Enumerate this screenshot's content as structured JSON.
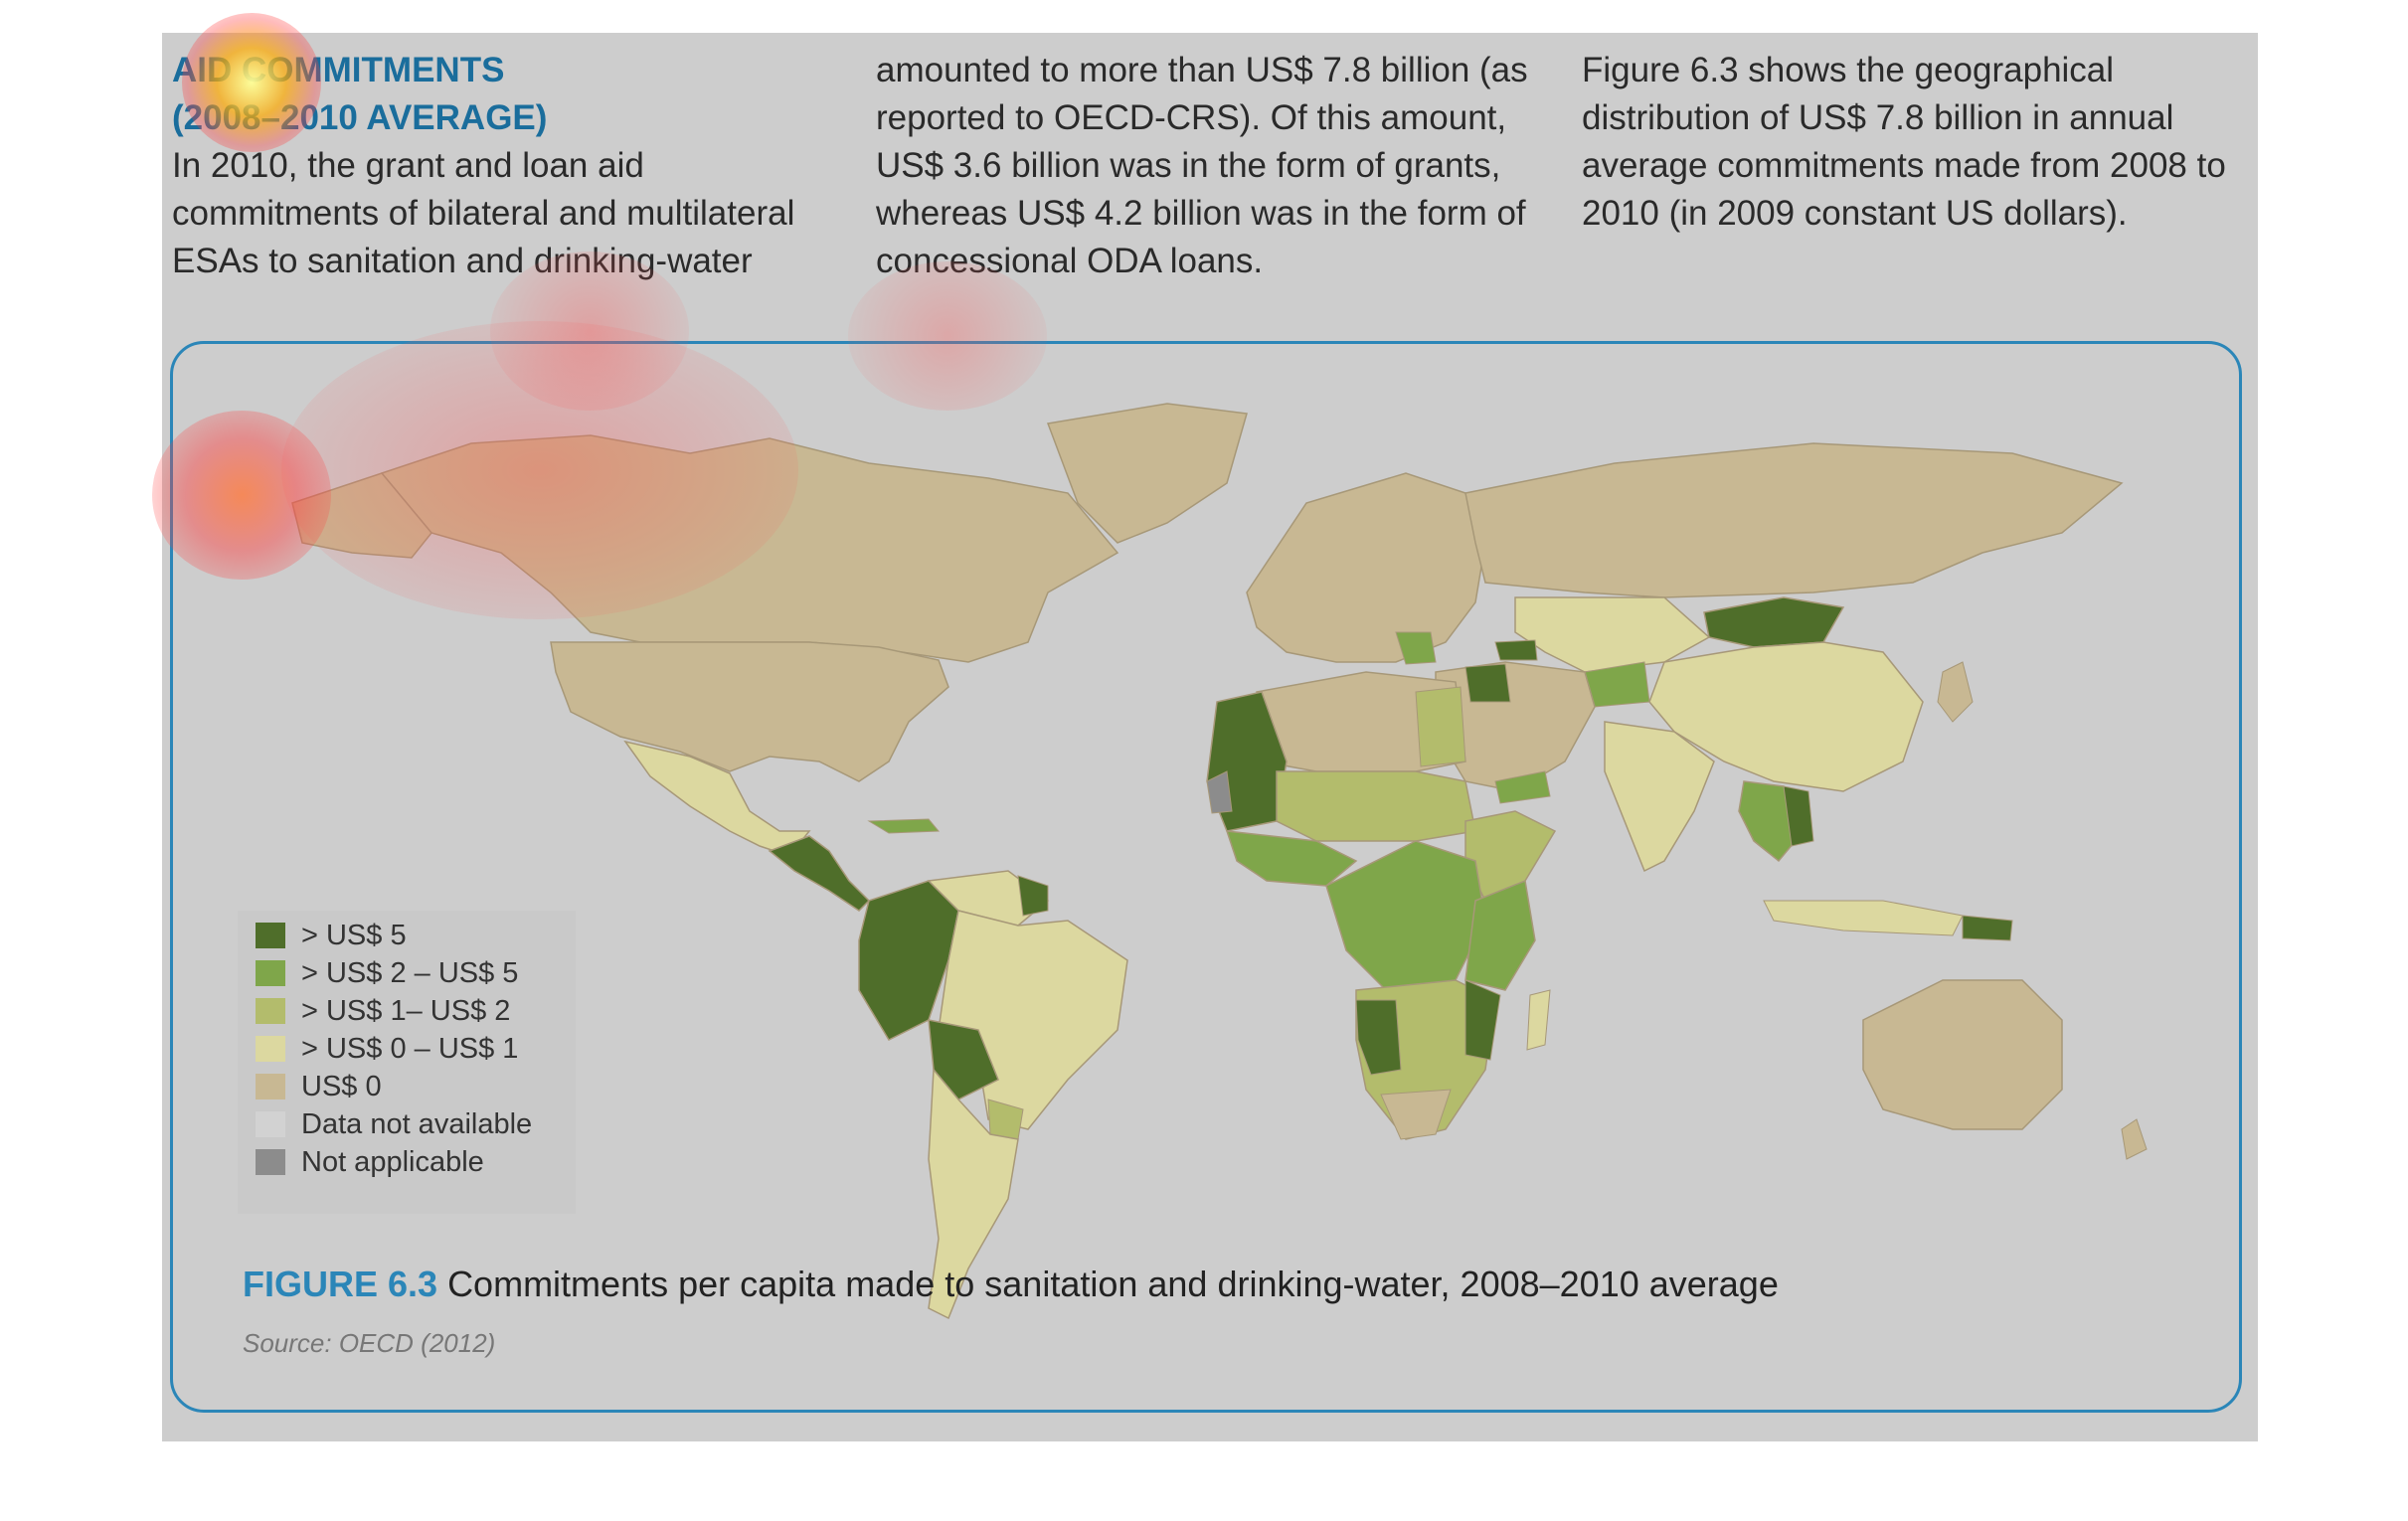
{
  "article": {
    "heading_line1": "AID COMMITMENTS",
    "heading_line2": "(2008–2010 AVERAGE)",
    "col1": "In 2010, the grant and loan aid commitments of bilateral and multilateral ESAs to sanitation and drinking-water",
    "col2": "amounted to more than US$ 7.8 billion (as reported to OECD-CRS). Of this amount, US$ 3.6 billion was in the form of grants, whereas US$ 4.2 billion was in the form of concessional ODA loans.",
    "col3": "Figure 6.3 shows the geographical distribution of US$ 7.8 billion in annual average commitments made from 2008 to 2010 (in 2009 constant US dollars)."
  },
  "figure": {
    "number": "FIGURE 6.3",
    "title": "Commitments per capita made to sanitation and drinking-water, 2008–2010 average",
    "source": "Source: OECD (2012)"
  },
  "legend": [
    {
      "label": "> US$ 5",
      "color": "#4f6e2a"
    },
    {
      "label": "> US$ 2 – US$ 5",
      "color": "#7fa64a"
    },
    {
      "label": "> US$ 1– US$ 2",
      "color": "#b3bc6c"
    },
    {
      "label": "> US$ 0 – US$ 1",
      "color": "#dcd8a0"
    },
    {
      "label": "US$ 0",
      "color": "#c8b893"
    },
    {
      "label": "Data not available",
      "color": "#d2d2d2"
    },
    {
      "label": "Not applicable",
      "color": "#8c8c8c"
    }
  ],
  "colors": {
    "panel_border": "#2b86b8",
    "page_background": "#cdcdcd",
    "ocean": "#cdcdcd"
  }
}
